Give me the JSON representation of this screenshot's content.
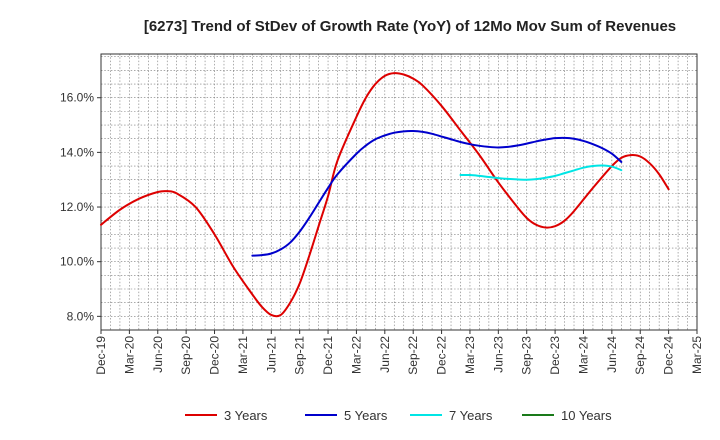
{
  "chart_data": {
    "type": "line",
    "title": "[6273]  Trend of StDev of Growth Rate (YoY) of 12Mo Mov Sum of Revenues",
    "xlabel": "",
    "ylabel": "",
    "ylim": [
      7.5,
      17.6
    ],
    "yticks": [
      8.0,
      10.0,
      12.0,
      14.0,
      16.0
    ],
    "ytick_labels": [
      "8.0%",
      "10.0%",
      "12.0%",
      "14.0%",
      "16.0%"
    ],
    "x_tick_labels": [
      "Dec-19",
      "Mar-20",
      "Jun-20",
      "Sep-20",
      "Dec-20",
      "Mar-21",
      "Jun-21",
      "Sep-21",
      "Dec-21",
      "Mar-22",
      "Jun-22",
      "Sep-22",
      "Dec-22",
      "Mar-23",
      "Jun-23",
      "Sep-23",
      "Dec-23",
      "Mar-24",
      "Jun-24",
      "Sep-24",
      "Dec-24",
      "Mar-25"
    ],
    "grid": true,
    "legend_position": "bottom",
    "series": [
      {
        "name": "3 Years",
        "color": "#dd0000",
        "points": [
          [
            0,
            11.35
          ],
          [
            2,
            11.9
          ],
          [
            4,
            12.3
          ],
          [
            6,
            12.55
          ],
          [
            7,
            12.58
          ],
          [
            8,
            12.5
          ],
          [
            10,
            12.0
          ],
          [
            12,
            11.0
          ],
          [
            14,
            9.8
          ],
          [
            16,
            8.8
          ],
          [
            17,
            8.35
          ],
          [
            18,
            8.05
          ],
          [
            19,
            8.05
          ],
          [
            20,
            8.5
          ],
          [
            21,
            9.2
          ],
          [
            22,
            10.2
          ],
          [
            23,
            11.3
          ],
          [
            24,
            12.4
          ],
          [
            25,
            13.7
          ],
          [
            27,
            15.3
          ],
          [
            28,
            16.0
          ],
          [
            29,
            16.5
          ],
          [
            30,
            16.8
          ],
          [
            31,
            16.9
          ],
          [
            32,
            16.85
          ],
          [
            33,
            16.7
          ],
          [
            34,
            16.45
          ],
          [
            36,
            15.7
          ],
          [
            38,
            14.8
          ],
          [
            40,
            13.9
          ],
          [
            42,
            12.9
          ],
          [
            44,
            12.0
          ],
          [
            45,
            11.6
          ],
          [
            46,
            11.35
          ],
          [
            47,
            11.25
          ],
          [
            48,
            11.3
          ],
          [
            49,
            11.5
          ],
          [
            50,
            11.85
          ],
          [
            52,
            12.7
          ],
          [
            54,
            13.5
          ],
          [
            55,
            13.8
          ],
          [
            56,
            13.9
          ],
          [
            57,
            13.85
          ],
          [
            58,
            13.6
          ],
          [
            59,
            13.2
          ],
          [
            60,
            12.65
          ]
        ]
      },
      {
        "name": "5 Years",
        "color": "#0000cc",
        "points": [
          [
            16,
            10.22
          ],
          [
            17,
            10.24
          ],
          [
            18,
            10.3
          ],
          [
            19,
            10.45
          ],
          [
            20,
            10.7
          ],
          [
            21,
            11.1
          ],
          [
            22,
            11.6
          ],
          [
            23,
            12.15
          ],
          [
            24,
            12.7
          ],
          [
            25,
            13.2
          ],
          [
            27,
            13.95
          ],
          [
            28,
            14.25
          ],
          [
            29,
            14.48
          ],
          [
            30,
            14.62
          ],
          [
            31,
            14.72
          ],
          [
            32,
            14.77
          ],
          [
            33,
            14.78
          ],
          [
            34,
            14.75
          ],
          [
            35,
            14.68
          ],
          [
            36,
            14.58
          ],
          [
            37,
            14.48
          ],
          [
            38,
            14.38
          ],
          [
            39,
            14.3
          ],
          [
            40,
            14.24
          ],
          [
            41,
            14.2
          ],
          [
            42,
            14.18
          ],
          [
            43,
            14.2
          ],
          [
            44,
            14.25
          ],
          [
            45,
            14.32
          ],
          [
            46,
            14.4
          ],
          [
            47,
            14.47
          ],
          [
            48,
            14.52
          ],
          [
            49,
            14.53
          ],
          [
            50,
            14.5
          ],
          [
            51,
            14.42
          ],
          [
            52,
            14.3
          ],
          [
            53,
            14.15
          ],
          [
            54,
            13.95
          ],
          [
            55,
            13.65
          ]
        ]
      },
      {
        "name": "7 Years",
        "color": "#00e5e5",
        "points": [
          [
            38,
            13.17
          ],
          [
            39,
            13.17
          ],
          [
            40,
            13.14
          ],
          [
            41,
            13.1
          ],
          [
            42,
            13.06
          ],
          [
            43,
            13.03
          ],
          [
            44,
            13.01
          ],
          [
            45,
            13.0
          ],
          [
            46,
            13.02
          ],
          [
            47,
            13.07
          ],
          [
            48,
            13.14
          ],
          [
            49,
            13.24
          ],
          [
            50,
            13.34
          ],
          [
            51,
            13.44
          ],
          [
            52,
            13.5
          ],
          [
            53,
            13.52
          ],
          [
            54,
            13.48
          ],
          [
            55,
            13.35
          ]
        ]
      },
      {
        "name": "10 Years",
        "color": "#1a7a1a",
        "points": []
      }
    ]
  }
}
